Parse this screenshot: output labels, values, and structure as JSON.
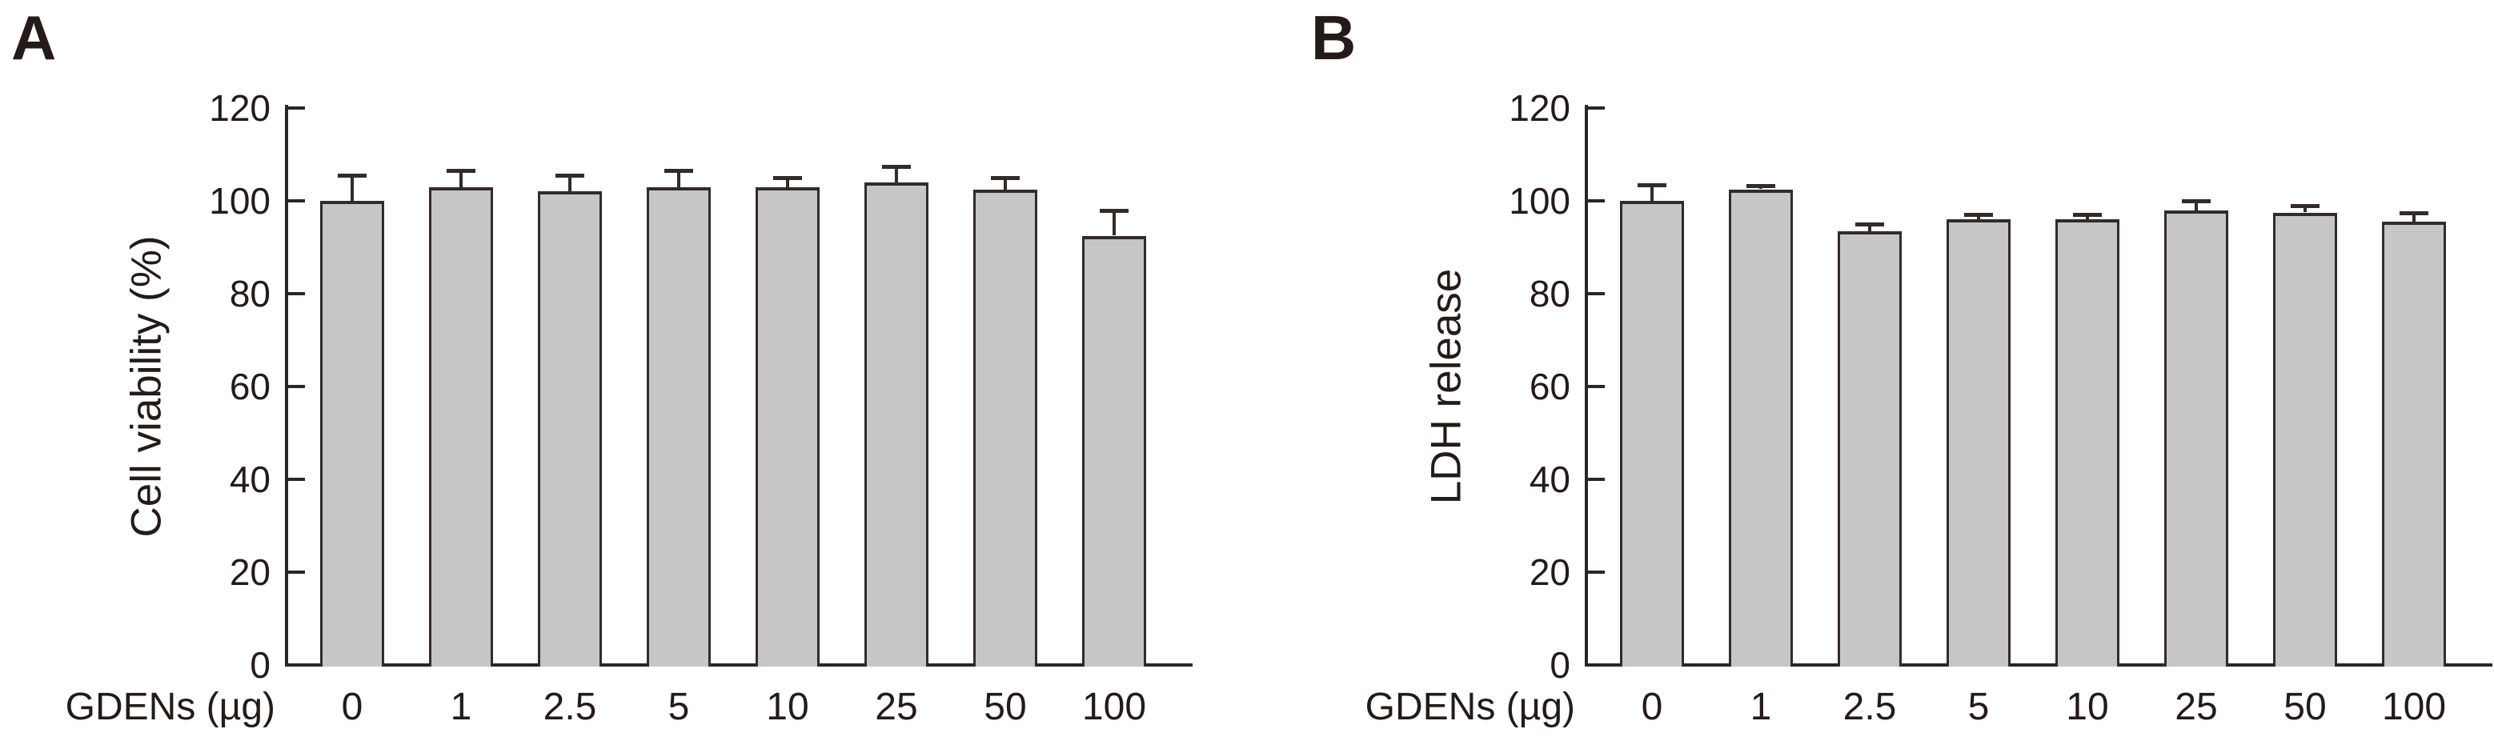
{
  "figure": {
    "background": "#ffffff"
  },
  "colors": {
    "background": "#ffffff",
    "text": "#241b18",
    "axis": "#2b2523",
    "bar_fill": "#c6c6c6",
    "bar_border": "#322b28"
  },
  "chart_data": [
    {
      "type": "bar",
      "panel_label": "A",
      "title": "",
      "xlabel": "GDENs (µg)",
      "ylabel": "Cell viability (%)",
      "categories": [
        "0",
        "1",
        "2.5",
        "5",
        "10",
        "25",
        "50",
        "100"
      ],
      "values": [
        100,
        103,
        102,
        103,
        103,
        104,
        102.5,
        92.5
      ],
      "errors_plus": [
        5.5,
        3.5,
        3.5,
        3.5,
        2,
        3.5,
        2.5,
        5.5
      ],
      "ylim": [
        0,
        120
      ],
      "yticks": [
        0,
        20,
        40,
        60,
        80,
        100,
        120
      ],
      "grid": false,
      "legend": "none",
      "bar_fill": "#c6c6c6",
      "bar_border": "#322b28"
    },
    {
      "type": "bar",
      "panel_label": "B",
      "title": "",
      "xlabel": "GDENs (µg)",
      "ylabel": "LDH release",
      "categories": [
        "0",
        "1",
        "2.5",
        "5",
        "10",
        "25",
        "50",
        "100"
      ],
      "values": [
        100,
        102.5,
        93.5,
        96,
        96,
        98,
        97.5,
        95.5
      ],
      "errors_plus": [
        3.5,
        0.8,
        1.5,
        1,
        1,
        2,
        1.5,
        2
      ],
      "ylim": [
        0,
        120
      ],
      "yticks": [
        0,
        20,
        40,
        60,
        80,
        100,
        120
      ],
      "grid": false,
      "legend": "none",
      "bar_fill": "#c6c6c6",
      "bar_border": "#322b28"
    }
  ]
}
